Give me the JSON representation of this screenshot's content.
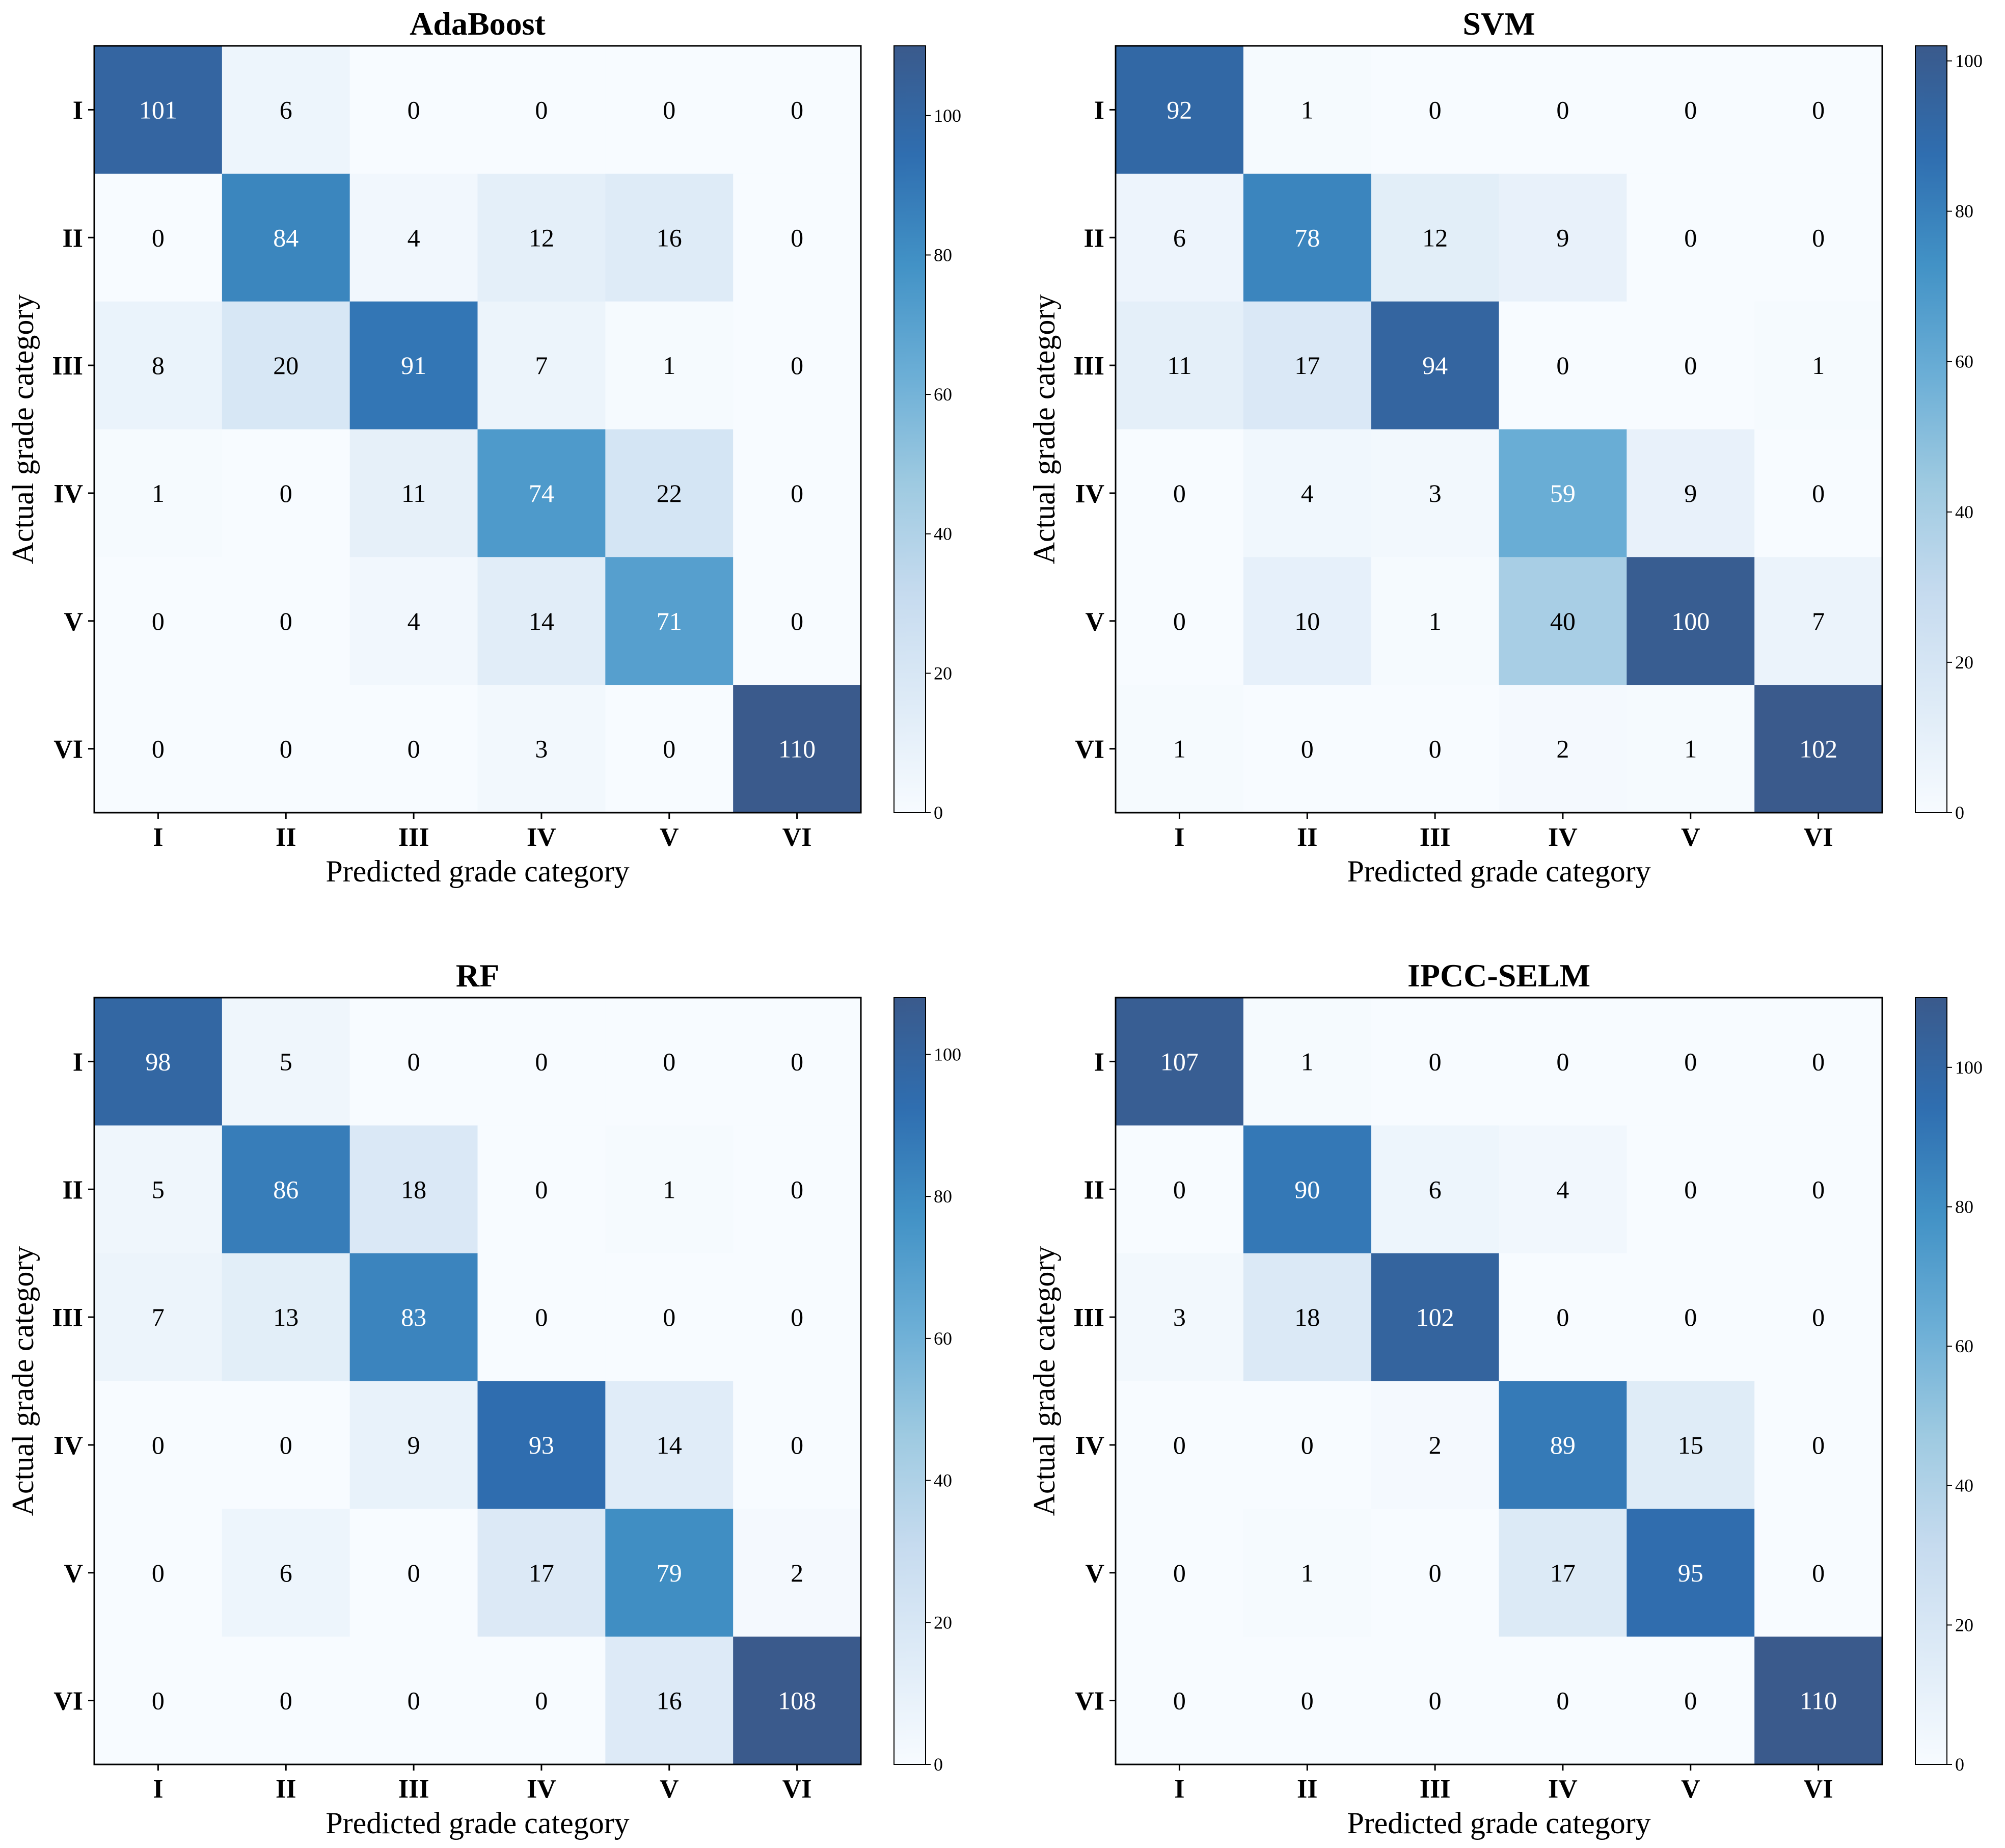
{
  "chart_data": [
    {
      "type": "heatmap",
      "title": "AdaBoost",
      "xlabel": "Predicted grade category",
      "ylabel": "Actual grade category",
      "x_categories": [
        "I",
        "II",
        "III",
        "IV",
        "V",
        "VI"
      ],
      "y_categories": [
        "I",
        "II",
        "III",
        "IV",
        "V",
        "VI"
      ],
      "values": [
        [
          101,
          6,
          0,
          0,
          0,
          0
        ],
        [
          0,
          84,
          4,
          12,
          16,
          0
        ],
        [
          8,
          20,
          91,
          7,
          1,
          0
        ],
        [
          1,
          0,
          11,
          74,
          22,
          0
        ],
        [
          0,
          0,
          4,
          14,
          71,
          0
        ],
        [
          0,
          0,
          0,
          3,
          0,
          110
        ]
      ],
      "colorbar": {
        "min": 0,
        "max": 110,
        "ticks": [
          0,
          20,
          40,
          60,
          80,
          100
        ]
      },
      "colormap": [
        "#f7fbff",
        "#deebf7",
        "#c6dbef",
        "#9ecae1",
        "#6baed6",
        "#4292c6",
        "#2f6eb0",
        "#3a5a8c"
      ]
    },
    {
      "type": "heatmap",
      "title": "SVM",
      "xlabel": "Predicted grade category",
      "ylabel": "Actual grade category",
      "x_categories": [
        "I",
        "II",
        "III",
        "IV",
        "V",
        "VI"
      ],
      "y_categories": [
        "I",
        "II",
        "III",
        "IV",
        "V",
        "VI"
      ],
      "values": [
        [
          92,
          1,
          0,
          0,
          0,
          0
        ],
        [
          6,
          78,
          12,
          9,
          0,
          0
        ],
        [
          11,
          17,
          94,
          0,
          0,
          1
        ],
        [
          0,
          4,
          3,
          59,
          9,
          0
        ],
        [
          0,
          10,
          1,
          40,
          100,
          7
        ],
        [
          1,
          0,
          0,
          2,
          1,
          102
        ]
      ],
      "colorbar": {
        "min": 0,
        "max": 102,
        "ticks": [
          0,
          20,
          40,
          60,
          80,
          100
        ]
      },
      "colormap": [
        "#f7fbff",
        "#deebf7",
        "#c6dbef",
        "#9ecae1",
        "#6baed6",
        "#4292c6",
        "#2f6eb0",
        "#3a5a8c"
      ]
    },
    {
      "type": "heatmap",
      "title": "RF",
      "xlabel": "Predicted grade category",
      "ylabel": "Actual grade category",
      "x_categories": [
        "I",
        "II",
        "III",
        "IV",
        "V",
        "VI"
      ],
      "y_categories": [
        "I",
        "II",
        "III",
        "IV",
        "V",
        "VI"
      ],
      "values": [
        [
          98,
          5,
          0,
          0,
          0,
          0
        ],
        [
          5,
          86,
          18,
          0,
          1,
          0
        ],
        [
          7,
          13,
          83,
          0,
          0,
          0
        ],
        [
          0,
          0,
          9,
          93,
          14,
          0
        ],
        [
          0,
          6,
          0,
          17,
          79,
          2
        ],
        [
          0,
          0,
          0,
          0,
          16,
          108
        ]
      ],
      "colorbar": {
        "min": 0,
        "max": 108,
        "ticks": [
          0,
          20,
          40,
          60,
          80,
          100
        ]
      },
      "colormap": [
        "#f7fbff",
        "#deebf7",
        "#c6dbef",
        "#9ecae1",
        "#6baed6",
        "#4292c6",
        "#2f6eb0",
        "#3a5a8c"
      ]
    },
    {
      "type": "heatmap",
      "title": "IPCC-SELM",
      "xlabel": "Predicted grade category",
      "ylabel": "Actual grade category",
      "x_categories": [
        "I",
        "II",
        "III",
        "IV",
        "V",
        "VI"
      ],
      "y_categories": [
        "I",
        "II",
        "III",
        "IV",
        "V",
        "VI"
      ],
      "values": [
        [
          107,
          1,
          0,
          0,
          0,
          0
        ],
        [
          0,
          90,
          6,
          4,
          0,
          0
        ],
        [
          3,
          18,
          102,
          0,
          0,
          0
        ],
        [
          0,
          0,
          2,
          89,
          15,
          0
        ],
        [
          0,
          1,
          0,
          17,
          95,
          0
        ],
        [
          0,
          0,
          0,
          0,
          0,
          110
        ]
      ],
      "colorbar": {
        "min": 0,
        "max": 110,
        "ticks": [
          0,
          20,
          40,
          60,
          80,
          100
        ]
      },
      "colormap": [
        "#f7fbff",
        "#deebf7",
        "#c6dbef",
        "#9ecae1",
        "#6baed6",
        "#4292c6",
        "#2f6eb0",
        "#3a5a8c"
      ]
    }
  ]
}
